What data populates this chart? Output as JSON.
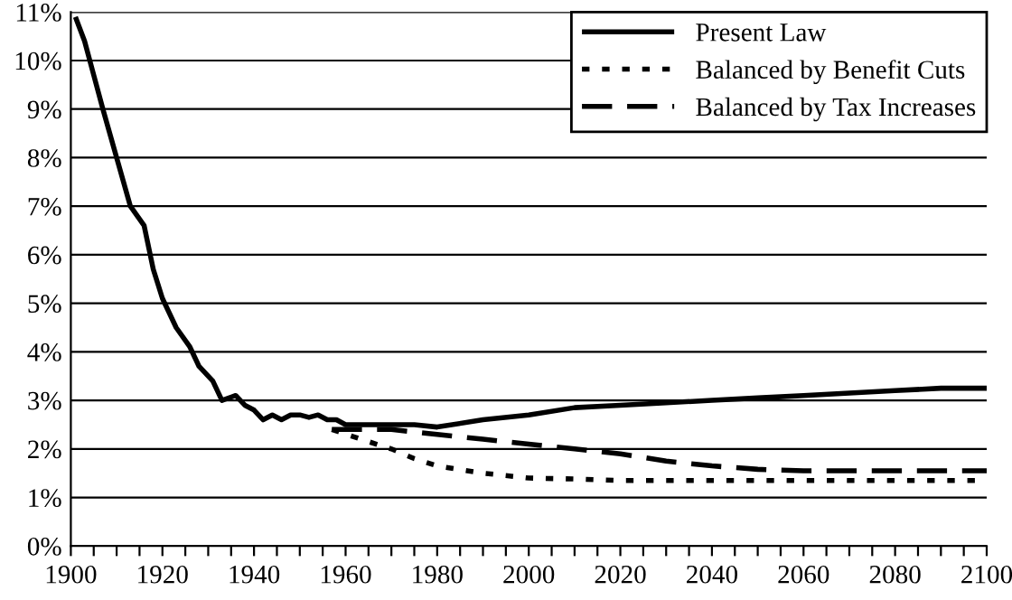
{
  "chart_data": {
    "type": "line",
    "xlim": [
      1900,
      2100
    ],
    "xticks": [
      1900,
      {
        "value": 1905,
        "label": null
      },
      {
        "value": 1910,
        "label": null
      },
      {
        "value": 1915,
        "label": null
      },
      1920,
      {
        "value": 1925,
        "label": null
      },
      {
        "value": 1930,
        "label": null
      },
      {
        "value": 1935,
        "label": null
      },
      1940,
      {
        "value": 1945,
        "label": null
      },
      {
        "value": 1950,
        "label": null
      },
      {
        "value": 1955,
        "label": null
      },
      1960,
      {
        "value": 1965,
        "label": null
      },
      {
        "value": 1970,
        "label": null
      },
      {
        "value": 1975,
        "label": null
      },
      1980,
      {
        "value": 1985,
        "label": null
      },
      {
        "value": 1990,
        "label": null
      },
      {
        "value": 1995,
        "label": null
      },
      2000,
      {
        "value": 2005,
        "label": null
      },
      {
        "value": 2010,
        "label": null
      },
      {
        "value": 2015,
        "label": null
      },
      2020,
      {
        "value": 2025,
        "label": null
      },
      {
        "value": 2030,
        "label": null
      },
      {
        "value": 2035,
        "label": null
      },
      2040,
      {
        "value": 2045,
        "label": null
      },
      {
        "value": 2050,
        "label": null
      },
      {
        "value": 2055,
        "label": null
      },
      2060,
      {
        "value": 2065,
        "label": null
      },
      {
        "value": 2070,
        "label": null
      },
      {
        "value": 2075,
        "label": null
      },
      2080,
      {
        "value": 2085,
        "label": null
      },
      {
        "value": 2090,
        "label": null
      },
      {
        "value": 2095,
        "label": null
      },
      2100
    ],
    "ylim": [
      0,
      11
    ],
    "yticks": [
      {
        "value": 0,
        "label": "0%"
      },
      {
        "value": 1,
        "label": "1%"
      },
      {
        "value": 2,
        "label": "2%"
      },
      {
        "value": 3,
        "label": "3%"
      },
      {
        "value": 4,
        "label": "4%"
      },
      {
        "value": 5,
        "label": "5%"
      },
      {
        "value": 6,
        "label": "6%"
      },
      {
        "value": 7,
        "label": "7%"
      },
      {
        "value": 8,
        "label": "8%"
      },
      {
        "value": 9,
        "label": "9%"
      },
      {
        "value": 10,
        "label": "10%"
      },
      {
        "value": 11,
        "label": "11%"
      }
    ],
    "grid": "y",
    "legend": "top right",
    "marker": "none",
    "series": [
      {
        "name": "Present Law",
        "color": "#000000",
        "line_style": "solid",
        "x": [
          1901,
          1903,
          1905,
          1907,
          1910,
          1913,
          1916,
          1918,
          1920,
          1923,
          1926,
          1928,
          1931,
          1933,
          1936,
          1938,
          1940,
          1942,
          1944,
          1946,
          1948,
          1950,
          1952,
          1954,
          1956,
          1958,
          1960,
          1965,
          1970,
          1975,
          1980,
          1990,
          2000,
          2010,
          2020,
          2030,
          2040,
          2050,
          2060,
          2070,
          2080,
          2090,
          2100
        ],
        "values": [
          10.9,
          10.4,
          9.7,
          9.0,
          8.0,
          7.0,
          6.6,
          5.7,
          5.1,
          4.5,
          4.1,
          3.7,
          3.4,
          3.0,
          3.1,
          2.9,
          2.8,
          2.6,
          2.7,
          2.6,
          2.7,
          2.7,
          2.65,
          2.7,
          2.6,
          2.6,
          2.5,
          2.5,
          2.5,
          2.5,
          2.45,
          2.6,
          2.7,
          2.85,
          2.9,
          2.95,
          3.0,
          3.05,
          3.1,
          3.15,
          3.2,
          3.25,
          3.25
        ]
      },
      {
        "name": "Balanced by Benefit Cuts",
        "color": "#000000",
        "line_style": "dotted",
        "x": [
          1957,
          1965,
          1970,
          1975,
          1980,
          1990,
          2000,
          2010,
          2020,
          2040,
          2060,
          2080,
          2100
        ],
        "values": [
          2.4,
          2.15,
          2.0,
          1.8,
          1.65,
          1.5,
          1.4,
          1.38,
          1.35,
          1.35,
          1.35,
          1.35,
          1.35
        ]
      },
      {
        "name": "Balanced by Tax Increases",
        "color": "#000000",
        "line_style": "dashed",
        "x": [
          1957,
          1965,
          1970,
          1980,
          1990,
          2000,
          2010,
          2020,
          2030,
          2040,
          2050,
          2060,
          2080,
          2100
        ],
        "values": [
          2.4,
          2.4,
          2.4,
          2.3,
          2.2,
          2.1,
          2.0,
          1.9,
          1.75,
          1.65,
          1.58,
          1.55,
          1.55,
          1.55
        ]
      }
    ]
  }
}
